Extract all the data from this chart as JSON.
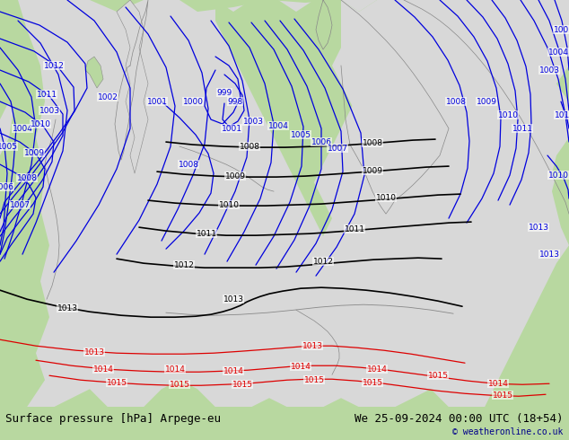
{
  "title_left": "Surface pressure [hPa] Arpege-eu",
  "title_right": "We 25-09-2024 00:00 UTC (18+54)",
  "copyright": "© weatheronline.co.uk",
  "bg_color": "#b8d8a0",
  "land_color_light": "#d8d8d8",
  "land_color_grey": "#c8c8c8",
  "sea_green": "#b8d8a0",
  "blue_line_color": "#0000dd",
  "red_line_color": "#dd0000",
  "black_line_color": "#000000",
  "bottom_bar_color": "#c8c8c8",
  "text_color_dark": "#000000",
  "text_color_blue": "#00008b",
  "font_size_labels": 6.5,
  "font_size_bottom": 9,
  "font_size_copyright": 7,
  "fig_width": 6.34,
  "fig_height": 4.9,
  "dpi": 100
}
